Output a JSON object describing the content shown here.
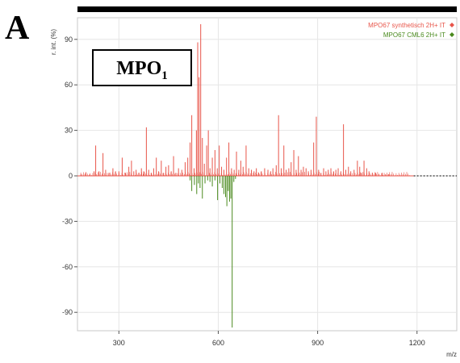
{
  "panel_label": "A",
  "inset_label": {
    "base": "MPO",
    "subscript": "1"
  },
  "chart_data": {
    "type": "bar",
    "ylabel": "r. int. (%)",
    "xlabel": "m/z",
    "xlim": [
      175,
      1320
    ],
    "ylim": [
      -105,
      105
    ],
    "xticks": [
      300,
      600,
      900,
      1200
    ],
    "yticks": [
      90,
      60,
      30,
      0,
      -30,
      -60,
      -90
    ],
    "grid": true,
    "legend_position": "top-right",
    "series": [
      {
        "name": "MPO67 synthetisch 2H+ IT",
        "color": "#e8554a",
        "direction": "up",
        "x": [
          185,
          200,
          212,
          225,
          230,
          240,
          252,
          260,
          270,
          282,
          290,
          300,
          310,
          320,
          330,
          338,
          345,
          352,
          360,
          368,
          375,
          383,
          390,
          398,
          405,
          413,
          420,
          428,
          435,
          442,
          450,
          458,
          465,
          472,
          480,
          490,
          500,
          508,
          515,
          520,
          527,
          534,
          538,
          542,
          547,
          552,
          558,
          565,
          570,
          575,
          582,
          590,
          597,
          603,
          610,
          617,
          625,
          632,
          640,
          648,
          655,
          662,
          668,
          675,
          684,
          692,
          700,
          708,
          715,
          722,
          730,
          740,
          750,
          758,
          765,
          775,
          782,
          790,
          798,
          805,
          813,
          820,
          828,
          835,
          842,
          850,
          857,
          865,
          872,
          880,
          888,
          896,
          903,
          910,
          918,
          925,
          932,
          940,
          948,
          955,
          962,
          970,
          978,
          985,
          993,
          1000,
          1010,
          1020,
          1027,
          1032,
          1040,
          1048,
          1055,
          1065,
          1075,
          1085,
          1095,
          1105,
          1115
        ],
        "values": [
          1,
          2,
          1,
          3,
          20,
          3,
          15,
          4,
          2,
          5,
          3,
          3,
          12,
          2,
          6,
          10,
          3,
          4,
          2,
          5,
          3,
          32,
          4,
          2,
          5,
          12,
          3,
          10,
          2,
          6,
          7,
          3,
          13,
          2,
          5,
          4,
          9,
          12,
          22,
          40,
          5,
          30,
          88,
          65,
          100,
          25,
          8,
          20,
          30,
          5,
          12,
          17,
          5,
          20,
          6,
          4,
          12,
          22,
          5,
          4,
          16,
          4,
          10,
          6,
          20,
          5,
          4,
          3,
          5,
          2,
          3,
          5,
          4,
          3,
          5,
          7,
          40,
          5,
          20,
          4,
          5,
          9,
          17,
          4,
          13,
          4,
          6,
          5,
          3,
          4,
          22,
          39,
          4,
          2,
          5,
          3,
          4,
          5,
          3,
          4,
          5,
          3,
          34,
          4,
          6,
          3,
          4,
          10,
          6,
          2,
          10,
          5,
          3,
          2,
          2,
          1,
          2,
          1,
          1
        ]
      },
      {
        "name": "MPO67 CML6 2H+ IT",
        "color": "#4a8a1e",
        "direction": "down",
        "x": [
          515,
          520,
          528,
          535,
          540,
          545,
          552,
          560,
          568,
          575,
          582,
          590,
          598,
          605,
          612,
          617,
          622,
          626,
          630,
          634,
          638,
          642,
          647,
          652
        ],
        "values": [
          3,
          10,
          6,
          12,
          5,
          8,
          15,
          5,
          3,
          4,
          7,
          3,
          16,
          5,
          8,
          12,
          14,
          20,
          10,
          17,
          15,
          100,
          4,
          2
        ]
      }
    ]
  }
}
